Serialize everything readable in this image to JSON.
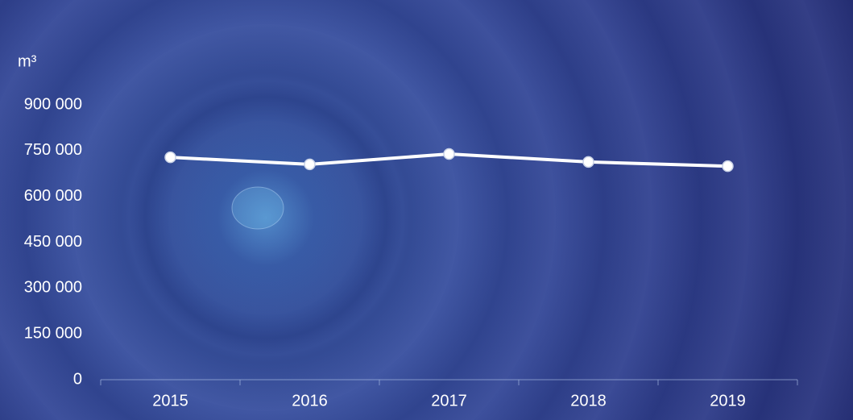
{
  "chart_data": {
    "type": "line",
    "unit_label": "m³",
    "categories": [
      "2015",
      "2016",
      "2017",
      "2018",
      "2019"
    ],
    "series": [
      {
        "name": null,
        "color": "#ffffff",
        "values": [
          728000,
          705000,
          739000,
          713000,
          699000
        ]
      }
    ],
    "ylim": [
      0,
      900000
    ],
    "yticks": [
      0,
      {
        "value": 150000,
        "label": "150 000"
      },
      {
        "value": 300000,
        "label": "300 000"
      },
      {
        "value": 450000,
        "label": "450 000"
      },
      {
        "value": 600000,
        "label": "600 000"
      },
      {
        "value": 750000,
        "label": "750 000"
      },
      {
        "value": 900000,
        "label": "900 000"
      }
    ],
    "grid": false
  }
}
